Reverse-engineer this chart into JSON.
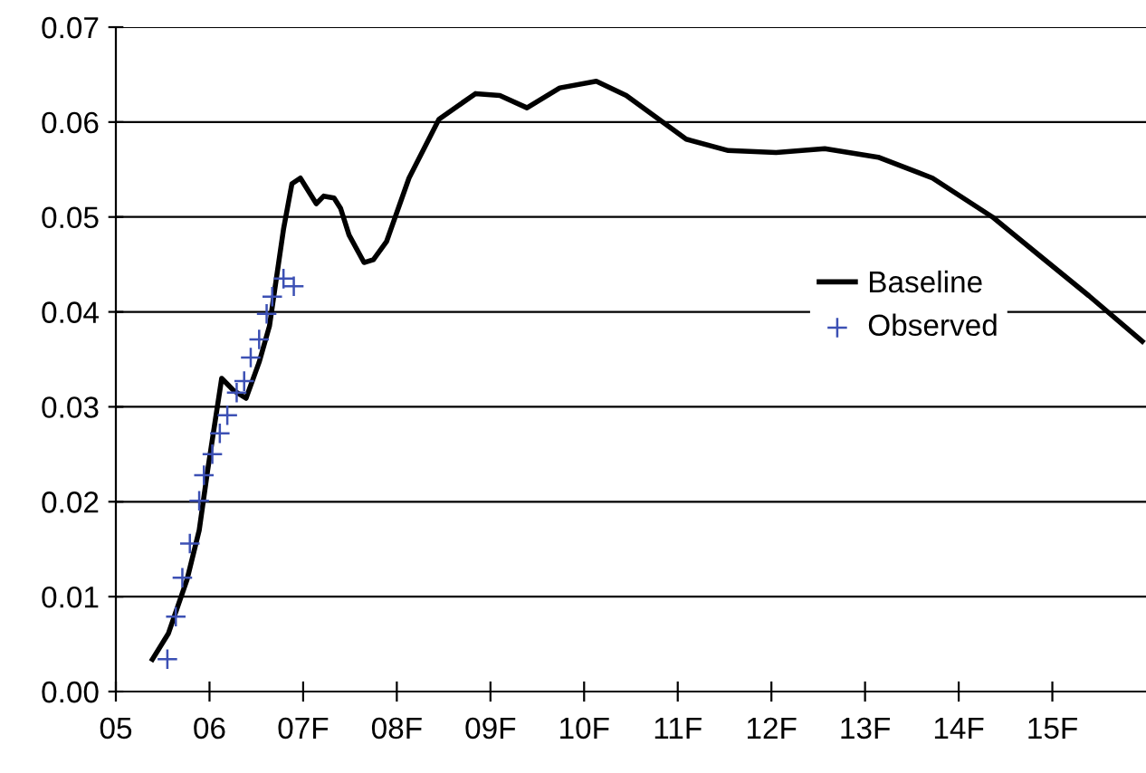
{
  "chart_data": {
    "type": "line",
    "grid": "y",
    "legend": "right",
    "xlim": [
      5,
      16
    ],
    "ylim": [
      0,
      0.07
    ],
    "xticks": [
      {
        "value": 5,
        "label": "05"
      },
      {
        "value": 6,
        "label": "06"
      },
      {
        "value": 7,
        "label": "07F"
      },
      {
        "value": 8,
        "label": "08F"
      },
      {
        "value": 9,
        "label": "09F"
      },
      {
        "value": 10,
        "label": "10F"
      },
      {
        "value": 11,
        "label": "11F"
      },
      {
        "value": 12,
        "label": "12F"
      },
      {
        "value": 13,
        "label": "13F"
      },
      {
        "value": 14,
        "label": "14F"
      },
      {
        "value": 15,
        "label": "15F"
      }
    ],
    "yticks": [
      {
        "value": 0,
        "label": "0.00"
      },
      {
        "value": 0.01,
        "label": "0.01"
      },
      {
        "value": 0.02,
        "label": "0.02"
      },
      {
        "value": 0.03,
        "label": "0.03"
      },
      {
        "value": 0.04,
        "label": "0.04"
      },
      {
        "value": 0.05,
        "label": "0.05"
      },
      {
        "value": 0.06,
        "label": "0.06"
      },
      {
        "value": 0.07,
        "label": "0.07"
      }
    ],
    "series": [
      {
        "name": "Baseline",
        "color": "#000000",
        "line_style": "solid",
        "marker": "none",
        "x": [
          5.39,
          5.56,
          5.76,
          5.89,
          5.98,
          6.13,
          6.26,
          6.39,
          6.53,
          6.64,
          6.79,
          6.88,
          6.97,
          7.14,
          7.22,
          7.33,
          7.4,
          7.49,
          7.65,
          7.75,
          7.89,
          8.13,
          8.45,
          8.84,
          9.1,
          9.39,
          9.74,
          10.13,
          10.45,
          11.09,
          11.54,
          12.05,
          12.57,
          13.14,
          13.72,
          14.36,
          14.88,
          15.39,
          15.96
        ],
        "values": [
          0.0034,
          0.0061,
          0.0118,
          0.017,
          0.0233,
          0.033,
          0.0317,
          0.0309,
          0.0347,
          0.0385,
          0.0487,
          0.0535,
          0.0541,
          0.0514,
          0.0522,
          0.052,
          0.0509,
          0.0481,
          0.0452,
          0.0455,
          0.0474,
          0.0541,
          0.0603,
          0.063,
          0.0628,
          0.0615,
          0.0636,
          0.0643,
          0.0628,
          0.0582,
          0.057,
          0.0568,
          0.0572,
          0.0563,
          0.0541,
          0.05,
          0.0458,
          0.0417,
          0.0369
        ]
      },
      {
        "name": "Observed",
        "type": "scatter",
        "color": "#3c50b4",
        "marker": "cross",
        "x": [
          5.55,
          5.64,
          5.71,
          5.79,
          5.89,
          5.94,
          6.03,
          6.11,
          6.19,
          6.29,
          6.37,
          6.44,
          6.53,
          6.61,
          6.67,
          6.79,
          6.9
        ],
        "values": [
          0.0034,
          0.0079,
          0.012,
          0.0156,
          0.0201,
          0.0228,
          0.025,
          0.0272,
          0.0291,
          0.0315,
          0.0327,
          0.0352,
          0.0371,
          0.0398,
          0.0416,
          0.0435,
          0.0427
        ]
      }
    ]
  }
}
